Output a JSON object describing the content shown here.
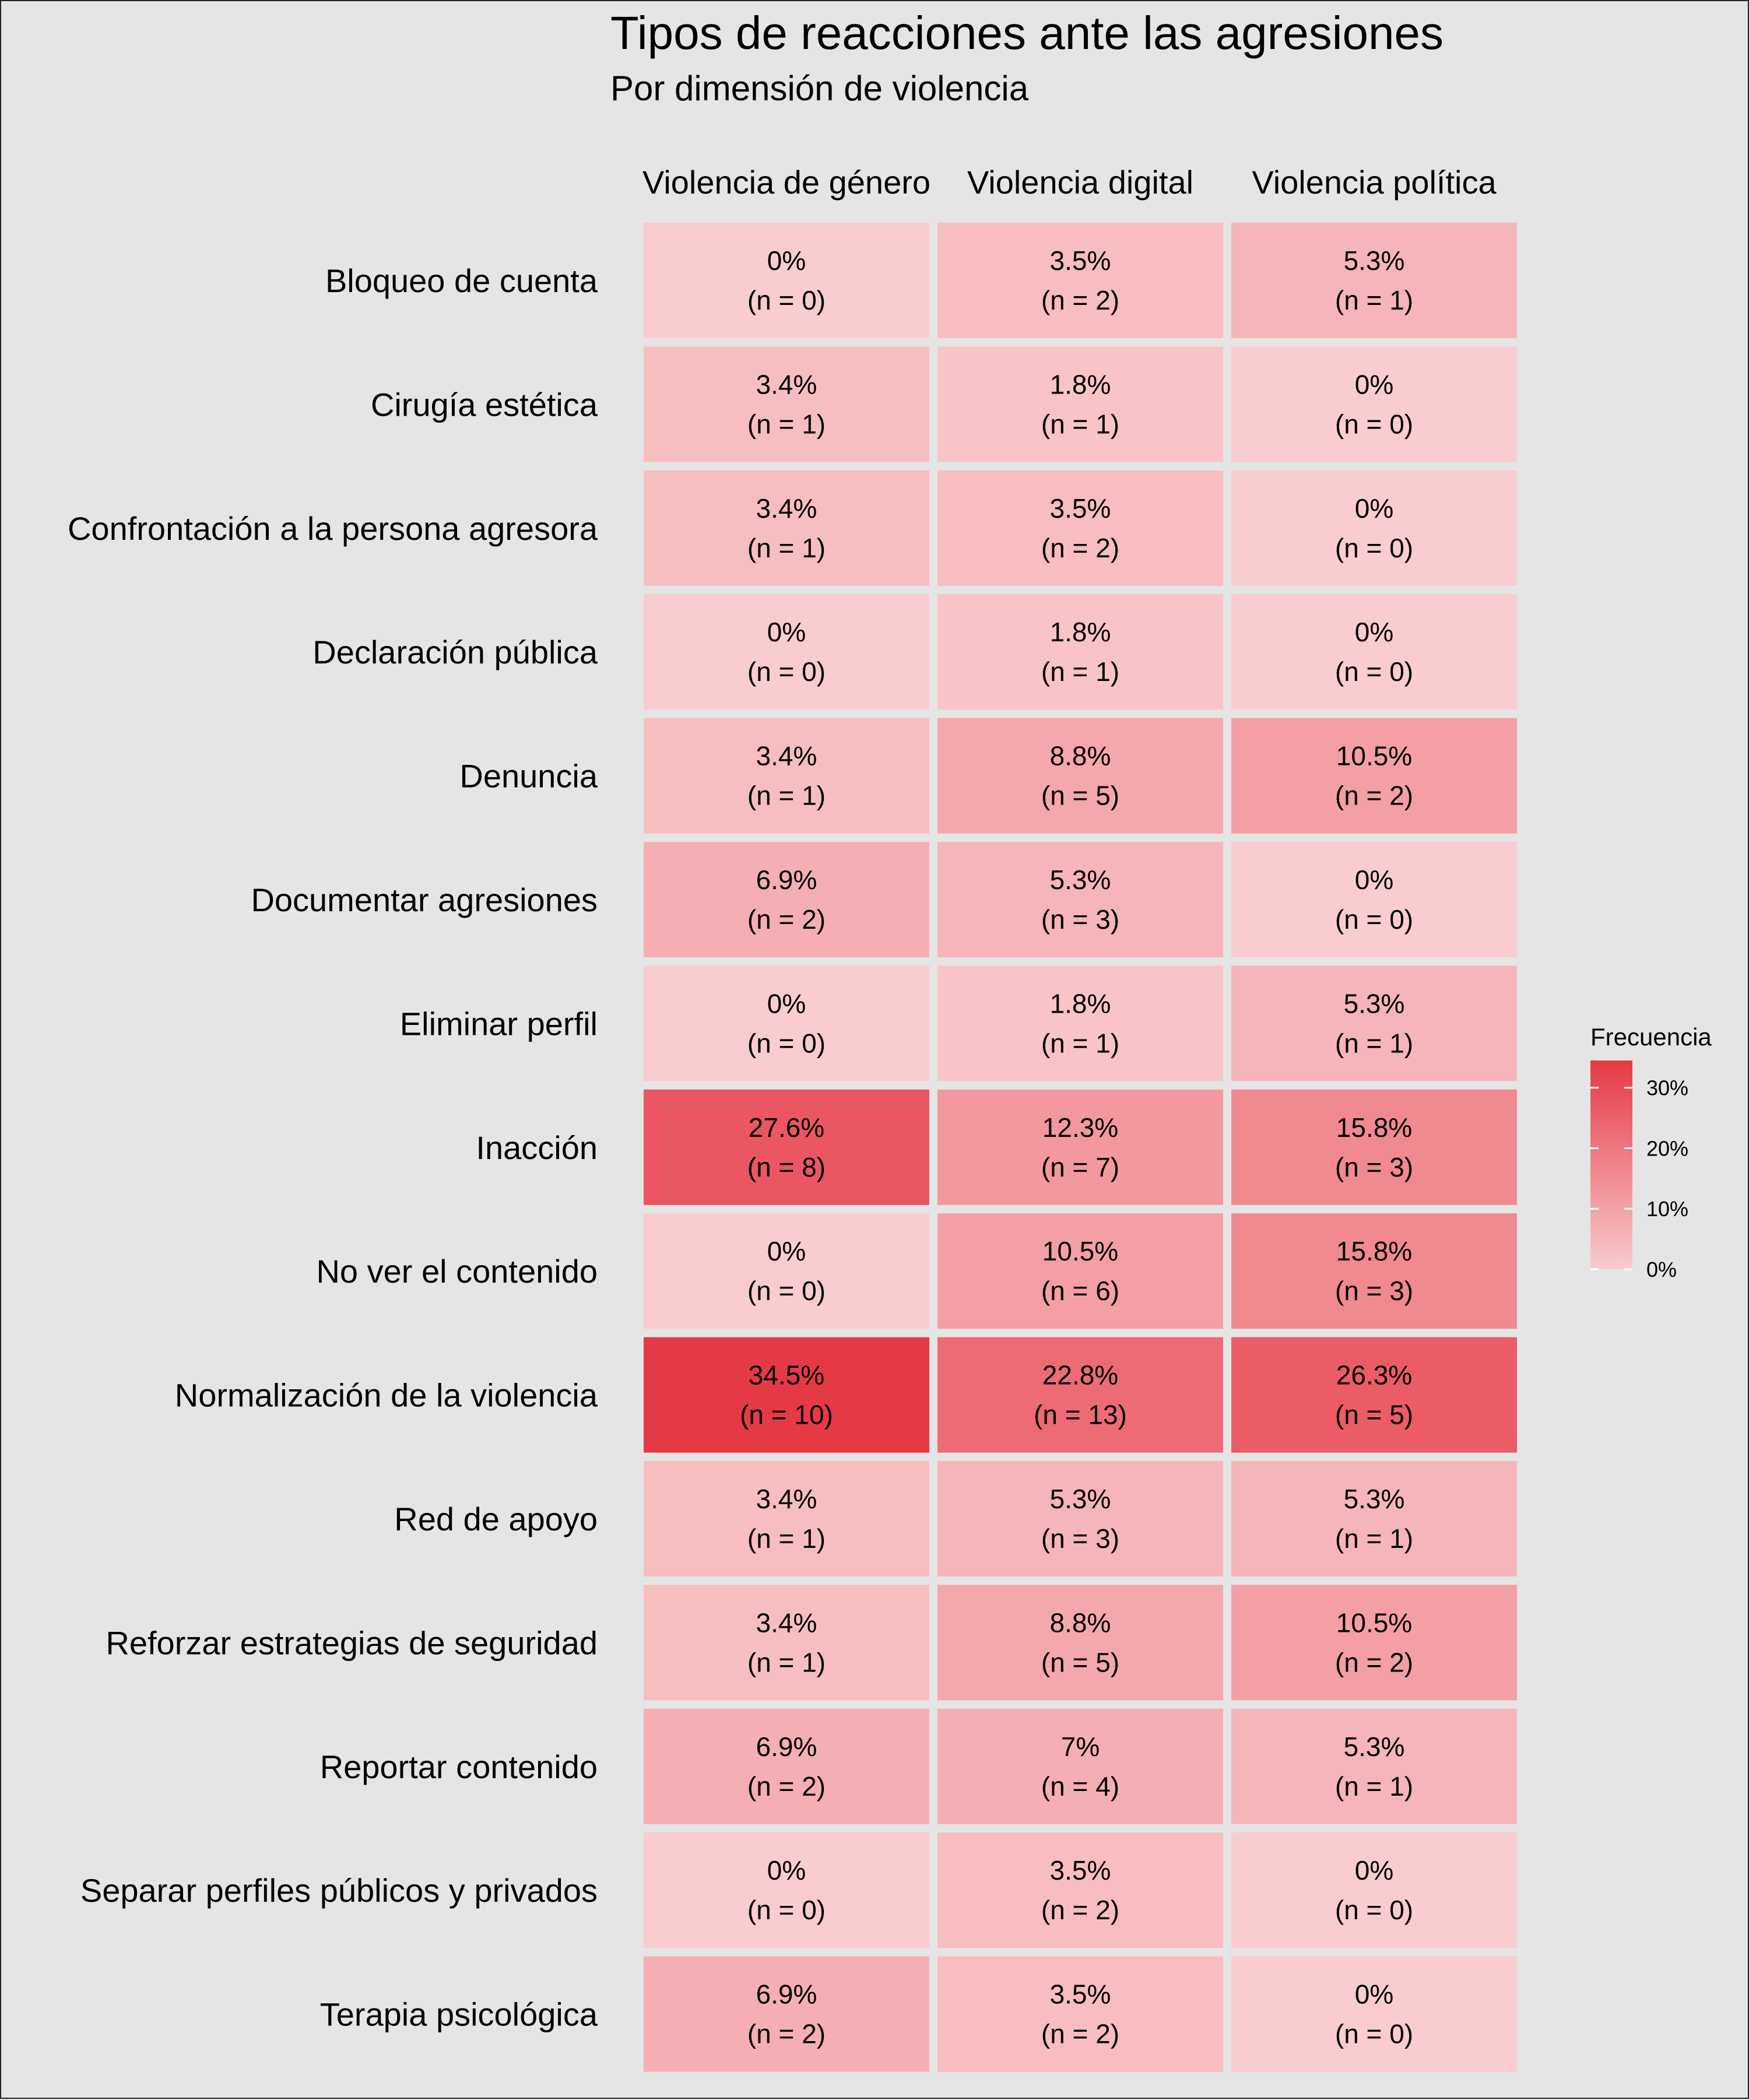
{
  "chart_data": {
    "type": "heatmap",
    "title": "Tipos de reacciones ante las agresiones",
    "subtitle": "Por dimensión de violencia",
    "columns": [
      "Violencia de género",
      "Violencia digital",
      "Violencia política"
    ],
    "rows": [
      "Bloqueo de cuenta",
      "Cirugía estética",
      "Confrontación a la persona agresora",
      "Declaración pública",
      "Denuncia",
      "Documentar agresiones",
      "Eliminar perfil",
      "Inacción",
      "No ver el contenido",
      "Normalización de la violencia",
      "Red de apoyo",
      "Reforzar estrategias de seguridad",
      "Reportar contenido",
      "Separar perfiles públicos y privados",
      "Terapia psicológica"
    ],
    "values": [
      [
        0,
        3.5,
        5.3
      ],
      [
        3.4,
        1.8,
        0
      ],
      [
        3.4,
        3.5,
        0
      ],
      [
        0,
        1.8,
        0
      ],
      [
        3.4,
        8.8,
        10.5
      ],
      [
        6.9,
        5.3,
        0
      ],
      [
        0,
        1.8,
        5.3
      ],
      [
        27.6,
        12.3,
        15.8
      ],
      [
        0,
        10.5,
        15.8
      ],
      [
        34.5,
        22.8,
        26.3
      ],
      [
        3.4,
        5.3,
        5.3
      ],
      [
        3.4,
        8.8,
        10.5
      ],
      [
        6.9,
        7,
        5.3
      ],
      [
        0,
        3.5,
        0
      ],
      [
        6.9,
        3.5,
        0
      ]
    ],
    "labels": [
      [
        "0%",
        "3.5%",
        "5.3%"
      ],
      [
        "3.4%",
        "1.8%",
        "0%"
      ],
      [
        "3.4%",
        "3.5%",
        "0%"
      ],
      [
        "0%",
        "1.8%",
        "0%"
      ],
      [
        "3.4%",
        "8.8%",
        "10.5%"
      ],
      [
        "6.9%",
        "5.3%",
        "0%"
      ],
      [
        "0%",
        "1.8%",
        "5.3%"
      ],
      [
        "27.6%",
        "12.3%",
        "15.8%"
      ],
      [
        "0%",
        "10.5%",
        "15.8%"
      ],
      [
        "34.5%",
        "22.8%",
        "26.3%"
      ],
      [
        "3.4%",
        "5.3%",
        "5.3%"
      ],
      [
        "3.4%",
        "8.8%",
        "10.5%"
      ],
      [
        "6.9%",
        "7%",
        "5.3%"
      ],
      [
        "0%",
        "3.5%",
        "0%"
      ],
      [
        "6.9%",
        "3.5%",
        "0%"
      ]
    ],
    "n_labels": [
      [
        "(n = 0)",
        "(n = 2)",
        "(n = 1)"
      ],
      [
        "(n = 1)",
        "(n = 1)",
        "(n = 0)"
      ],
      [
        "(n = 1)",
        "(n = 2)",
        "(n = 0)"
      ],
      [
        "(n = 0)",
        "(n = 1)",
        "(n = 0)"
      ],
      [
        "(n = 1)",
        "(n = 5)",
        "(n = 2)"
      ],
      [
        "(n = 2)",
        "(n = 3)",
        "(n = 0)"
      ],
      [
        "(n = 0)",
        "(n = 1)",
        "(n = 1)"
      ],
      [
        "(n = 8)",
        "(n = 7)",
        "(n = 3)"
      ],
      [
        "(n = 0)",
        "(n = 6)",
        "(n = 3)"
      ],
      [
        "(n = 10)",
        "(n = 13)",
        "(n = 5)"
      ],
      [
        "(n = 1)",
        "(n = 3)",
        "(n = 1)"
      ],
      [
        "(n = 1)",
        "(n = 5)",
        "(n = 2)"
      ],
      [
        "(n = 2)",
        "(n = 4)",
        "(n = 1)"
      ],
      [
        "(n = 0)",
        "(n = 2)",
        "(n = 0)"
      ],
      [
        "(n = 2)",
        "(n = 2)",
        "(n = 0)"
      ]
    ],
    "value_range": [
      0,
      34.5
    ],
    "color_low": "#f9cccf",
    "color_high": "#e63946",
    "legend": {
      "title": "Frecuencia",
      "position": "right",
      "ticks": [
        0,
        10,
        20,
        30
      ],
      "tick_labels": [
        "0%",
        "10%",
        "20%",
        "30%"
      ]
    },
    "grid": false
  }
}
